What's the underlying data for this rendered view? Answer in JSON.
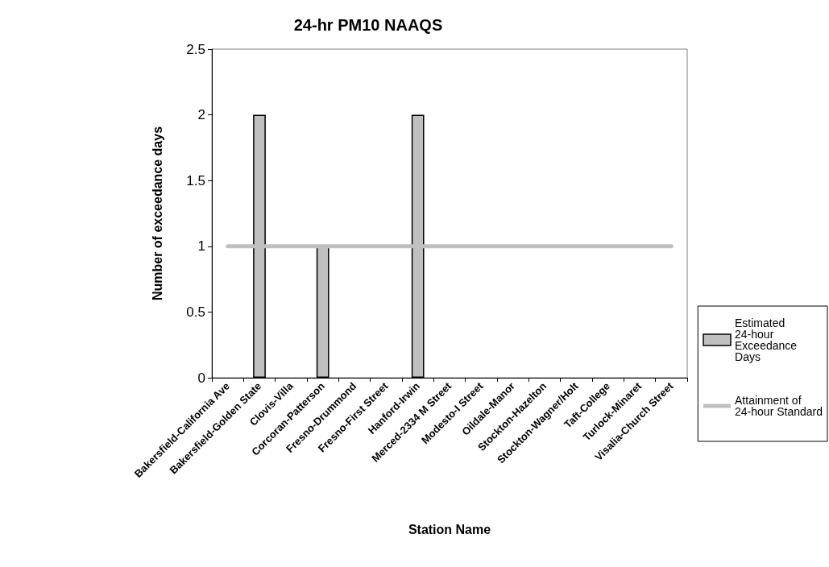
{
  "chart_data": {
    "type": "bar",
    "title": "24-hr PM10 NAAQS",
    "xlabel": "Station Name",
    "ylabel": "Number of exceedance days",
    "categories": [
      "Bakersfield-California Ave",
      "Bakersfield-Golden State",
      "Clovis-Villa",
      "Corcoran-Patterson",
      "Fresno-Drummond",
      "Fresno-First Street",
      "Hanford-Irwin",
      "Merced-2334 M Street",
      "Modesto-I Street",
      "Oildale-Manor",
      "Stockton-Hazelton",
      "Stockton-Wagner/Holt",
      "Taft-College",
      "Turlock-Minaret",
      "Visalia-Church Street"
    ],
    "series": [
      {
        "name": "Estimated 24-hour Exceedance Days",
        "color": "#c0c0c0",
        "values": [
          0,
          2,
          0,
          1,
          0,
          0,
          2,
          0,
          0,
          0,
          0,
          0,
          0,
          0,
          0
        ]
      },
      {
        "name": "Attainment of 24-hour Standard",
        "type": "line",
        "color": "#c0c0c0",
        "values": [
          1,
          1,
          1,
          1,
          1,
          1,
          1,
          1,
          1,
          1,
          1,
          1,
          1,
          1,
          1
        ]
      }
    ],
    "ylim": [
      0,
      2.5
    ],
    "yticks": [
      0,
      0.5,
      1,
      1.5,
      2,
      2.5
    ],
    "grid": false,
    "legend": "right",
    "marker": "none"
  }
}
